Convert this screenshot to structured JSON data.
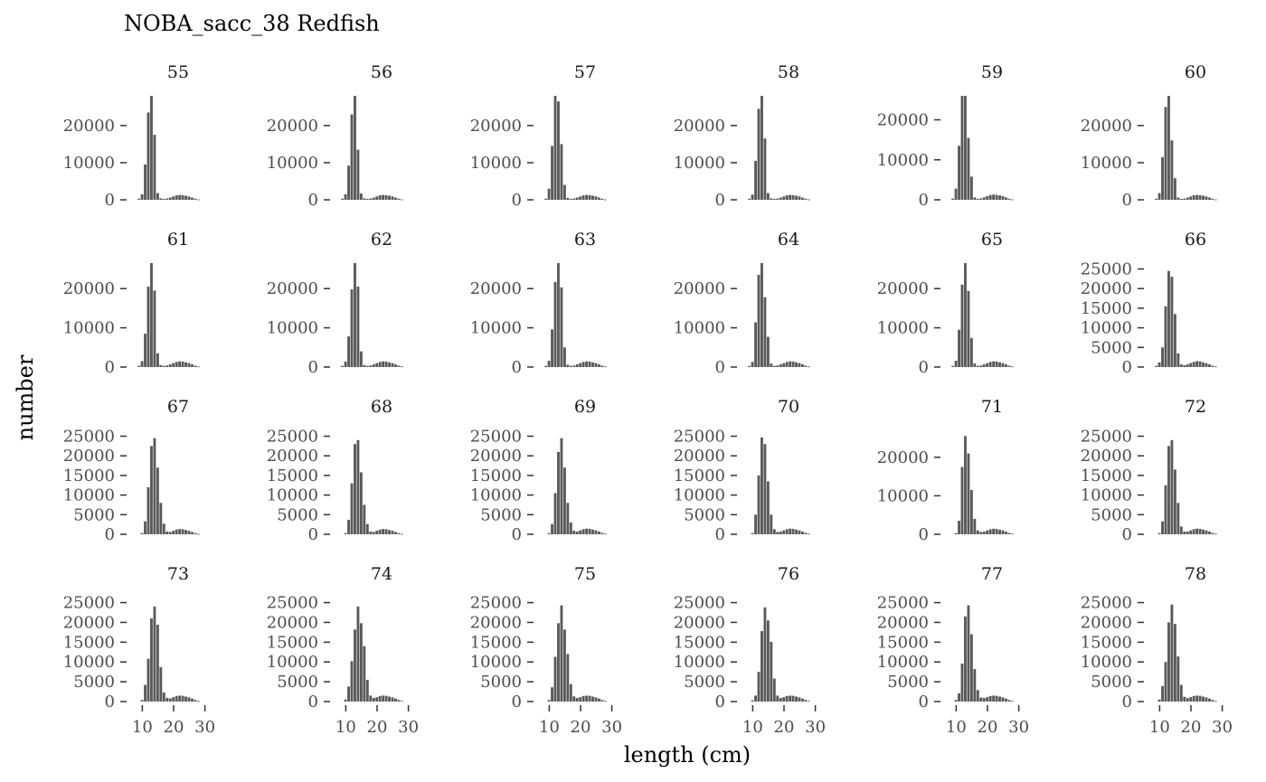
{
  "chart_data": {
    "type": "bar",
    "title": "NOBA_sacc_38 Redfish",
    "xlabel": "length (cm)",
    "ylabel": "number",
    "x_ticks": [
      10,
      20,
      30
    ],
    "xlim": [
      7,
      33
    ],
    "length_bins": [
      8,
      9,
      10,
      11,
      12,
      13,
      14,
      15,
      16,
      17,
      18,
      19,
      20,
      21,
      22,
      23,
      24,
      25,
      26,
      27,
      28,
      29,
      30,
      31,
      32
    ],
    "bar_color": "#595959",
    "facets": [
      {
        "label": "55",
        "ylim": [
          0,
          28000
        ],
        "y_ticks": [
          0,
          10000,
          20000
        ],
        "y_tick_labels": [
          "0",
          "10000",
          "20000"
        ],
        "values": [
          0,
          300,
          1500,
          9500,
          23500,
          28000,
          17500,
          1800,
          400,
          250,
          350,
          600,
          900,
          1200,
          1300,
          1250,
          1100,
          900,
          600,
          300,
          100,
          0,
          0,
          0,
          0
        ]
      },
      {
        "label": "56",
        "ylim": [
          0,
          28000
        ],
        "y_ticks": [
          0,
          10000,
          20000
        ],
        "y_tick_labels": [
          "0",
          "10000",
          "20000"
        ],
        "values": [
          0,
          300,
          1500,
          9200,
          23000,
          28000,
          13500,
          1700,
          400,
          250,
          350,
          600,
          900,
          1200,
          1300,
          1250,
          1100,
          900,
          600,
          300,
          100,
          0,
          0,
          0,
          0
        ]
      },
      {
        "label": "57",
        "ylim": [
          0,
          28000
        ],
        "y_ticks": [
          0,
          10000,
          20000
        ],
        "y_tick_labels": [
          "0",
          "10000",
          "20000"
        ],
        "values": [
          0,
          300,
          3000,
          14500,
          28000,
          26500,
          15000,
          4000,
          500,
          250,
          350,
          600,
          900,
          1200,
          1300,
          1250,
          1100,
          900,
          600,
          300,
          100,
          0,
          0,
          0,
          0
        ]
      },
      {
        "label": "58",
        "ylim": [
          0,
          28000
        ],
        "y_ticks": [
          0,
          10000,
          20000
        ],
        "y_tick_labels": [
          "0",
          "10000",
          "20000"
        ],
        "values": [
          0,
          300,
          1400,
          10500,
          24500,
          28000,
          16500,
          1800,
          400,
          250,
          350,
          600,
          900,
          1200,
          1300,
          1250,
          1100,
          900,
          600,
          300,
          100,
          0,
          0,
          0,
          0
        ]
      },
      {
        "label": "59",
        "ylim": [
          0,
          26000
        ],
        "y_ticks": [
          0,
          10000,
          20000
        ],
        "y_tick_labels": [
          "0",
          "10000",
          "20000"
        ],
        "values": [
          0,
          300,
          2800,
          13500,
          26000,
          26000,
          15500,
          5800,
          600,
          250,
          350,
          600,
          900,
          1200,
          1300,
          1250,
          1100,
          900,
          600,
          300,
          100,
          0,
          0,
          0,
          0
        ]
      },
      {
        "label": "60",
        "ylim": [
          0,
          28000
        ],
        "y_ticks": [
          0,
          10000,
          20000
        ],
        "y_tick_labels": [
          "0",
          "10000",
          "20000"
        ],
        "values": [
          0,
          300,
          1800,
          11500,
          25000,
          28000,
          16000,
          5800,
          600,
          250,
          350,
          600,
          900,
          1200,
          1300,
          1250,
          1100,
          900,
          600,
          300,
          100,
          0,
          0,
          0,
          0
        ]
      },
      {
        "label": "61",
        "ylim": [
          0,
          26500
        ],
        "y_ticks": [
          0,
          10000,
          20000
        ],
        "y_tick_labels": [
          "0",
          "10000",
          "20000"
        ],
        "values": [
          0,
          300,
          1500,
          8500,
          20500,
          26500,
          19500,
          3500,
          500,
          300,
          400,
          700,
          1000,
          1300,
          1450,
          1400,
          1200,
          1000,
          700,
          350,
          150,
          0,
          0,
          0,
          0
        ]
      },
      {
        "label": "62",
        "ylim": [
          0,
          26500
        ],
        "y_ticks": [
          0,
          10000,
          20000
        ],
        "y_tick_labels": [
          "0",
          "10000",
          "20000"
        ],
        "values": [
          0,
          300,
          1400,
          7800,
          19800,
          26500,
          20500,
          4000,
          500,
          300,
          400,
          700,
          1000,
          1300,
          1450,
          1400,
          1200,
          1000,
          700,
          350,
          150,
          0,
          0,
          0,
          0
        ]
      },
      {
        "label": "63",
        "ylim": [
          0,
          26500
        ],
        "y_ticks": [
          0,
          10000,
          20000
        ],
        "y_tick_labels": [
          "0",
          "10000",
          "20000"
        ],
        "values": [
          0,
          300,
          1600,
          9600,
          21700,
          26500,
          20300,
          5000,
          600,
          300,
          400,
          700,
          1000,
          1300,
          1450,
          1400,
          1200,
          1000,
          700,
          350,
          150,
          0,
          0,
          0,
          0
        ]
      },
      {
        "label": "64",
        "ylim": [
          0,
          26500
        ],
        "y_ticks": [
          0,
          10000,
          20000
        ],
        "y_tick_labels": [
          "0",
          "10000",
          "20000"
        ],
        "values": [
          0,
          300,
          1300,
          11400,
          23500,
          26500,
          17800,
          7700,
          900,
          300,
          400,
          700,
          1000,
          1300,
          1450,
          1400,
          1200,
          1000,
          700,
          350,
          150,
          0,
          0,
          0,
          0
        ]
      },
      {
        "label": "65",
        "ylim": [
          0,
          26500
        ],
        "y_ticks": [
          0,
          10000,
          20000
        ],
        "y_tick_labels": [
          "0",
          "10000",
          "20000"
        ],
        "values": [
          0,
          300,
          1600,
          9500,
          21000,
          26500,
          19400,
          7400,
          900,
          300,
          400,
          700,
          1000,
          1300,
          1450,
          1400,
          1200,
          1000,
          700,
          350,
          150,
          0,
          0,
          0,
          0
        ]
      },
      {
        "label": "66",
        "ylim": [
          0,
          26500
        ],
        "y_ticks": [
          0,
          5000,
          10000,
          15000,
          20000,
          25000
        ],
        "y_tick_labels": [
          "0",
          "5000",
          "10000",
          "15000",
          "20000",
          "25000"
        ],
        "values": [
          0,
          300,
          1200,
          5000,
          15500,
          24500,
          23000,
          13500,
          3500,
          700,
          450,
          700,
          1000,
          1300,
          1500,
          1450,
          1200,
          1000,
          700,
          350,
          150,
          0,
          0,
          0,
          0
        ]
      },
      {
        "label": "67",
        "ylim": [
          0,
          26500
        ],
        "y_ticks": [
          0,
          5000,
          10000,
          15000,
          20000,
          25000
        ],
        "y_tick_labels": [
          "0",
          "5000",
          "10000",
          "15000",
          "20000",
          "25000"
        ],
        "values": [
          0,
          0,
          300,
          3300,
          12000,
          22500,
          24500,
          17000,
          8000,
          2700,
          700,
          600,
          900,
          1200,
          1350,
          1300,
          1100,
          900,
          600,
          300,
          100,
          0,
          0,
          0,
          0
        ]
      },
      {
        "label": "68",
        "ylim": [
          0,
          26500
        ],
        "y_ticks": [
          0,
          5000,
          10000,
          15000,
          20000,
          25000
        ],
        "y_tick_labels": [
          "0",
          "5000",
          "10000",
          "15000",
          "20000",
          "25000"
        ],
        "values": [
          0,
          0,
          300,
          3700,
          13000,
          23000,
          24000,
          15800,
          7500,
          2600,
          700,
          600,
          900,
          1200,
          1350,
          1300,
          1100,
          900,
          600,
          300,
          100,
          0,
          0,
          0,
          0
        ]
      },
      {
        "label": "69",
        "ylim": [
          0,
          26500
        ],
        "y_ticks": [
          0,
          5000,
          10000,
          15000,
          20000,
          25000
        ],
        "y_tick_labels": [
          "0",
          "5000",
          "10000",
          "15000",
          "20000",
          "25000"
        ],
        "values": [
          0,
          0,
          300,
          2600,
          10500,
          21000,
          24500,
          17000,
          8000,
          3000,
          900,
          700,
          1000,
          1300,
          1450,
          1400,
          1200,
          1000,
          700,
          350,
          150,
          0,
          0,
          0,
          0
        ]
      },
      {
        "label": "70",
        "ylim": [
          0,
          26500
        ],
        "y_ticks": [
          0,
          5000,
          10000,
          15000,
          20000,
          25000
        ],
        "y_tick_labels": [
          "0",
          "5000",
          "10000",
          "15000",
          "20000",
          "25000"
        ],
        "values": [
          0,
          0,
          300,
          5000,
          15000,
          24700,
          23000,
          13500,
          5000,
          1300,
          600,
          700,
          1000,
          1300,
          1450,
          1400,
          1200,
          1000,
          700,
          350,
          150,
          0,
          0,
          0,
          0
        ]
      },
      {
        "label": "71",
        "ylim": [
          0,
          27000
        ],
        "y_ticks": [
          0,
          10000,
          20000
        ],
        "y_tick_labels": [
          "0",
          "10000",
          "20000"
        ],
        "values": [
          0,
          0,
          300,
          3500,
          17500,
          25500,
          21000,
          11500,
          4000,
          1000,
          600,
          700,
          1000,
          1300,
          1450,
          1400,
          1200,
          1000,
          700,
          350,
          150,
          0,
          0,
          0,
          0
        ]
      },
      {
        "label": "72",
        "ylim": [
          0,
          26500
        ],
        "y_ticks": [
          0,
          5000,
          10000,
          15000,
          20000,
          25000
        ],
        "y_tick_labels": [
          "0",
          "5000",
          "10000",
          "15000",
          "20000",
          "25000"
        ],
        "values": [
          0,
          0,
          300,
          3300,
          12500,
          22500,
          24000,
          16500,
          8000,
          2000,
          700,
          700,
          1000,
          1300,
          1450,
          1400,
          1200,
          1000,
          700,
          350,
          150,
          0,
          0,
          0,
          0
        ]
      },
      {
        "label": "73",
        "ylim": [
          0,
          26500
        ],
        "y_ticks": [
          0,
          5000,
          10000,
          15000,
          20000,
          25000
        ],
        "y_tick_labels": [
          "0",
          "5000",
          "10000",
          "15000",
          "20000",
          "25000"
        ],
        "values": [
          0,
          0,
          400,
          4200,
          10800,
          21000,
          24000,
          19400,
          8700,
          2300,
          900,
          800,
          1100,
          1400,
          1500,
          1450,
          1250,
          1050,
          750,
          400,
          150,
          0,
          0,
          0,
          0
        ]
      },
      {
        "label": "74",
        "ylim": [
          0,
          26500
        ],
        "y_ticks": [
          0,
          5000,
          10000,
          15000,
          20000,
          25000
        ],
        "y_tick_labels": [
          "0",
          "5000",
          "10000",
          "15000",
          "20000",
          "25000"
        ],
        "values": [
          0,
          0,
          500,
          3800,
          10200,
          18200,
          24000,
          19800,
          14000,
          5500,
          1500,
          900,
          1100,
          1400,
          1500,
          1450,
          1250,
          1050,
          750,
          400,
          150,
          0,
          0,
          0,
          0
        ]
      },
      {
        "label": "75",
        "ylim": [
          0,
          26500
        ],
        "y_ticks": [
          0,
          5000,
          10000,
          15000,
          20000,
          25000
        ],
        "y_tick_labels": [
          "0",
          "5000",
          "10000",
          "15000",
          "20000",
          "25000"
        ],
        "values": [
          0,
          0,
          400,
          3600,
          11300,
          19800,
          24300,
          18200,
          12000,
          4400,
          1300,
          900,
          1100,
          1400,
          1500,
          1450,
          1250,
          1050,
          750,
          400,
          150,
          0,
          0,
          0,
          0
        ]
      },
      {
        "label": "76",
        "ylim": [
          0,
          26500
        ],
        "y_ticks": [
          0,
          5000,
          10000,
          15000,
          20000,
          25000
        ],
        "y_tick_labels": [
          "0",
          "5000",
          "10000",
          "15000",
          "20000",
          "25000"
        ],
        "values": [
          0,
          0,
          300,
          1500,
          7500,
          17800,
          23800,
          20500,
          15100,
          5800,
          1500,
          900,
          1100,
          1400,
          1500,
          1450,
          1250,
          1050,
          750,
          400,
          150,
          0,
          0,
          0,
          0
        ]
      },
      {
        "label": "77",
        "ylim": [
          0,
          26500
        ],
        "y_ticks": [
          0,
          5000,
          10000,
          15000,
          20000,
          25000
        ],
        "y_tick_labels": [
          "0",
          "5000",
          "10000",
          "15000",
          "20000",
          "25000"
        ],
        "values": [
          0,
          0,
          400,
          2100,
          9600,
          21500,
          24300,
          17000,
          8200,
          2900,
          1000,
          900,
          1100,
          1400,
          1500,
          1450,
          1250,
          1050,
          750,
          400,
          150,
          0,
          0,
          0,
          0
        ]
      },
      {
        "label": "78",
        "ylim": [
          0,
          26500
        ],
        "y_ticks": [
          0,
          5000,
          10000,
          15000,
          20000,
          25000
        ],
        "y_tick_labels": [
          "0",
          "5000",
          "10000",
          "15000",
          "20000",
          "25000"
        ],
        "values": [
          0,
          0,
          500,
          3900,
          10000,
          20000,
          24500,
          19600,
          11400,
          4200,
          1200,
          900,
          1100,
          1400,
          1500,
          1450,
          1250,
          1050,
          750,
          400,
          150,
          0,
          0,
          0,
          0
        ]
      }
    ]
  }
}
